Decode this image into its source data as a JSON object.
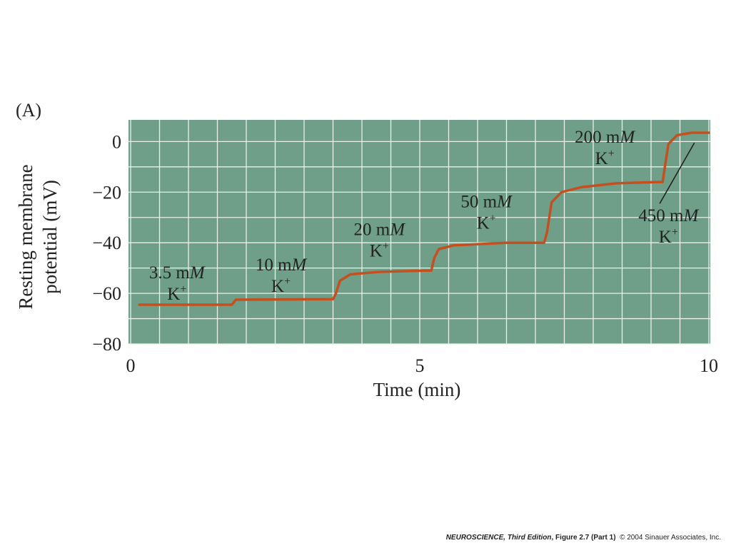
{
  "panel_label": "(A)",
  "credit": {
    "book": "NEUROSCIENCE",
    "edition": ", Third Edition",
    "figure": ", Figure 2.7 (Part 1)",
    "copyright": "© 2004 Sinauer Associates, Inc."
  },
  "colors": {
    "plot_background": "#6f9f88",
    "grid_line": "#e9efe9",
    "trace": "#c5501f",
    "text": "#222222"
  },
  "chart_data": {
    "type": "line",
    "title": "",
    "xlabel": "Time (min)",
    "ylabel_lines": [
      "Resting membrane",
      "potential (mV)"
    ],
    "xlim": [
      0,
      10
    ],
    "ylim": [
      -80,
      8
    ],
    "x_ticks": [
      0,
      5,
      10
    ],
    "x_tick_labels": [
      "0",
      "5",
      "10"
    ],
    "y_ticks": [
      0,
      -20,
      -40,
      -60,
      -80
    ],
    "y_tick_labels": [
      "0",
      "−20",
      "−40",
      "−60",
      "−80"
    ],
    "grid": true,
    "series": [
      {
        "points": [
          [
            0.15,
            -64.5
          ],
          [
            1.75,
            -64.5
          ],
          [
            1.82,
            -62.5
          ],
          [
            3.5,
            -62.3
          ],
          [
            3.55,
            -60
          ],
          [
            3.62,
            -55
          ],
          [
            3.8,
            -52.5
          ],
          [
            4.3,
            -51.5
          ],
          [
            5.1,
            -51
          ],
          [
            5.2,
            -51
          ],
          [
            5.25,
            -46
          ],
          [
            5.33,
            -42.5
          ],
          [
            5.6,
            -41
          ],
          [
            6.5,
            -40
          ],
          [
            7.15,
            -40
          ],
          [
            7.2,
            -36
          ],
          [
            7.28,
            -24
          ],
          [
            7.45,
            -20
          ],
          [
            7.8,
            -18
          ],
          [
            8.4,
            -16.5
          ],
          [
            9.1,
            -16
          ],
          [
            9.2,
            -16
          ],
          [
            9.24,
            -10
          ],
          [
            9.3,
            -1
          ],
          [
            9.45,
            2.5
          ],
          [
            9.7,
            3.5
          ],
          [
            10,
            3.5
          ]
        ]
      }
    ],
    "annotations": [
      {
        "conc": "3.5 m",
        "unit": "M",
        "ion": "K",
        "charge": "+",
        "x": 0.8,
        "y": -54
      },
      {
        "conc": "10 m",
        "unit": "M",
        "ion": "K",
        "charge": "+",
        "x": 2.6,
        "y": -51
      },
      {
        "conc": "20 m",
        "unit": "M",
        "ion": "K",
        "charge": "+",
        "x": 4.3,
        "y": -37
      },
      {
        "conc": "50 m",
        "unit": "M",
        "ion": "K",
        "charge": "+",
        "x": 6.15,
        "y": -26
      },
      {
        "conc": "200 m",
        "unit": "M",
        "ion": "K",
        "charge": "+",
        "x": 8.2,
        "y": -0.5
      },
      {
        "conc": "450 m",
        "unit": "M",
        "ion": "K",
        "charge": "+",
        "x": 9.3,
        "y": -31.5
      }
    ],
    "pointer": {
      "from": [
        9.15,
        -24.5
      ],
      "to": [
        9.75,
        -0.5
      ]
    }
  }
}
